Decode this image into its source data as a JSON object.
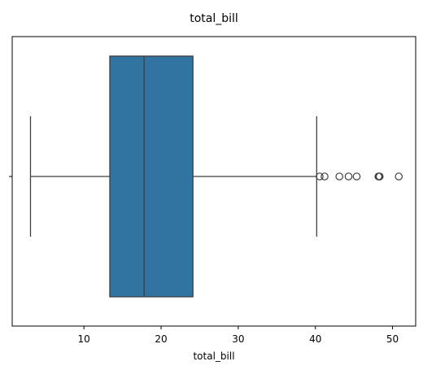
{
  "chart_data": {
    "type": "box",
    "title": "total_bill",
    "xlabel": "total_bill",
    "ylabel": "",
    "xlim": [
      0.7,
      53.0
    ],
    "xticks": [
      10,
      20,
      30,
      40,
      50
    ],
    "grid": false,
    "box": {
      "whisker_low": 3.07,
      "q1": 13.35,
      "median": 17.8,
      "q3": 24.13,
      "whisker_high": 40.17
    },
    "outliers": [
      40.55,
      41.19,
      43.11,
      44.3,
      45.35,
      48.17,
      48.27,
      48.33,
      50.81
    ],
    "colors": {
      "box_fill": "#3274a1",
      "line": "#3f3f3f"
    }
  }
}
